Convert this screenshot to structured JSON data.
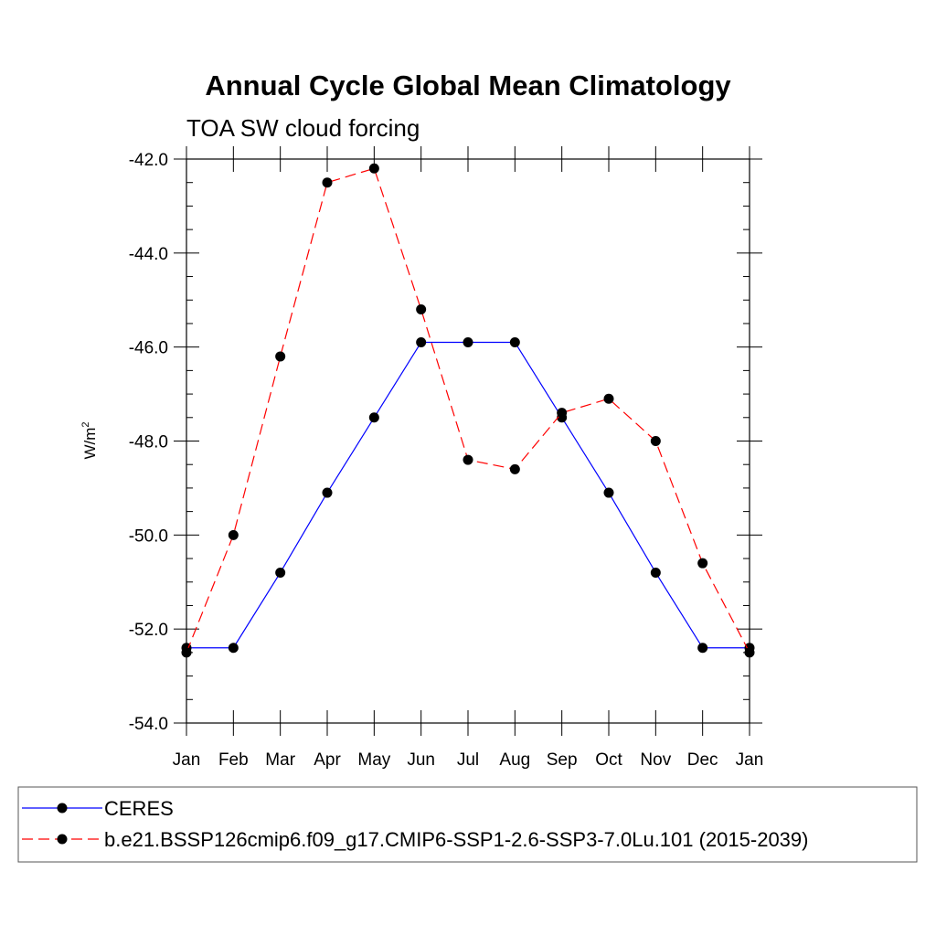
{
  "chart_data": {
    "type": "line",
    "title": "Annual Cycle Global Mean Climatology",
    "subtitle": "TOA SW cloud forcing",
    "ylabel": "W/m",
    "ylabel_superscript": "2",
    "ylim": [
      -54.0,
      -42.0
    ],
    "y_major_ticks": [
      -54.0,
      -52.0,
      -50.0,
      -48.0,
      -46.0,
      -44.0,
      -42.0
    ],
    "y_tick_labels": [
      "-54.0",
      "-52.0",
      "-50.0",
      "-48.0",
      "-46.0",
      "-44.0",
      "-42.0"
    ],
    "categories": [
      "Jan",
      "Feb",
      "Mar",
      "Apr",
      "May",
      "Jun",
      "Jul",
      "Aug",
      "Sep",
      "Oct",
      "Nov",
      "Dec",
      "Jan"
    ],
    "series": [
      {
        "name": "CERES",
        "color": "#0000ff",
        "dash": "solid",
        "marker": "filled-circle",
        "values": [
          -52.4,
          -52.4,
          -50.8,
          -49.1,
          -47.5,
          -45.9,
          -45.9,
          -45.9,
          -47.5,
          -49.1,
          -50.8,
          -52.4,
          -52.4
        ]
      },
      {
        "name": "b.e21.BSSP126cmip6.f09_g17.CMIP6-SSP1-2.6-SSP3-7.0Lu.101 (2015-2039)",
        "color": "#ff0000",
        "dash": "dashed",
        "marker": "filled-circle",
        "values": [
          -52.5,
          -50.0,
          -46.2,
          -42.5,
          -42.2,
          -45.2,
          -48.4,
          -48.6,
          -47.4,
          -47.1,
          -48.0,
          -50.6,
          -52.5
        ]
      }
    ],
    "legend_position": "bottom"
  }
}
